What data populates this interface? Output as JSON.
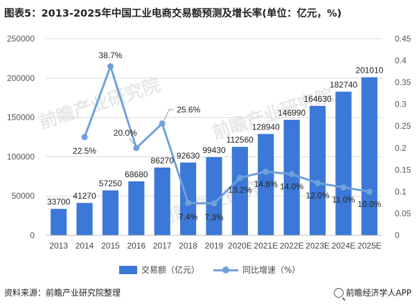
{
  "title": "图表5：2013-2025年中国工业电商交易额预测及增长率(单位：亿元，%)",
  "watermark_text": "前瞻产业研究院",
  "colors": {
    "bar": "#3b78d8",
    "line": "#6fa0dc",
    "grid": "#d9d9d9",
    "watermark": "#d6d6d6"
  },
  "legend": {
    "bar_label": "交易额（亿元）",
    "line_label": "同比增速（%）"
  },
  "source": "资料来源：前瞻产业研究院整理",
  "brand": "前瞻经济学人APP",
  "chart_data": {
    "type": "bar",
    "categories": [
      "2013",
      "2014",
      "2015",
      "2016",
      "2017",
      "2018",
      "2019",
      "2020E",
      "2021E",
      "2022E",
      "2023E",
      "2024E",
      "2025E"
    ],
    "series": [
      {
        "name": "交易额（亿元）",
        "type": "bar",
        "axis": "left",
        "values": [
          33700,
          41270,
          57250,
          68680,
          86270,
          92630,
          99430,
          112560,
          128940,
          146990,
          164630,
          182740,
          201010
        ],
        "labels": [
          "33700",
          "41270",
          "57250",
          "68680",
          "86270",
          "92630",
          "99430",
          "112560",
          "128940",
          "146990",
          "164630",
          "182740",
          "201010"
        ]
      },
      {
        "name": "同比增速（%）",
        "type": "line",
        "axis": "right",
        "values": [
          null,
          0.225,
          0.387,
          0.2,
          0.256,
          0.074,
          0.073,
          0.132,
          0.146,
          0.14,
          0.12,
          0.11,
          0.1
        ],
        "labels": [
          null,
          "22.5%",
          "38.7%",
          "20.0%",
          "25.6%",
          "7.4%",
          "7.3%",
          "13.2%",
          "14.6%",
          "14.0%",
          "12.0%",
          "11.0%",
          "10.0%"
        ]
      }
    ],
    "y_left": {
      "min": 0,
      "max": 250000,
      "ticks": [
        "0",
        "50000",
        "100000",
        "150000",
        "200000",
        "250000"
      ],
      "tick_values": [
        0,
        50000,
        100000,
        150000,
        200000,
        250000
      ]
    },
    "y_right": {
      "min": 0,
      "max": 0.45,
      "ticks": [
        "0",
        "0.05",
        "0.1",
        "0.15",
        "0.2",
        "0.25",
        "0.3",
        "0.35",
        "0.4",
        "0.45"
      ],
      "tick_values": [
        0,
        0.05,
        0.1,
        0.15,
        0.2,
        0.25,
        0.3,
        0.35,
        0.4,
        0.45
      ]
    },
    "grid": true,
    "legend_position": "bottom"
  }
}
